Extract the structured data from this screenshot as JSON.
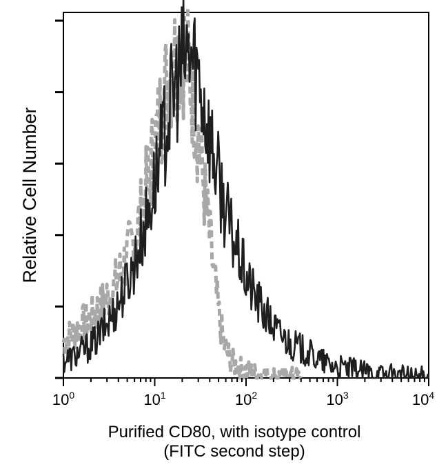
{
  "chart_data": {
    "type": "line",
    "title": "",
    "ylabel": "Relative Cell Number",
    "xlabel_lines": [
      "Purified CD80, with isotype control",
      "(FITC second step)"
    ],
    "x_scale": "log",
    "xlim": [
      1,
      10000
    ],
    "ylim": [
      0,
      100
    ],
    "x_ticks": [
      {
        "value": 1,
        "base": "10",
        "exp": "0"
      },
      {
        "value": 10,
        "base": "10",
        "exp": "1"
      },
      {
        "value": 100,
        "base": "10",
        "exp": "2"
      },
      {
        "value": 1000,
        "base": "10",
        "exp": "3"
      },
      {
        "value": 10000,
        "base": "10",
        "exp": "4"
      }
    ],
    "y_ticks": [
      0,
      20,
      40,
      60,
      80,
      100
    ],
    "grid": false,
    "legend": "none",
    "series": [
      {
        "style": "dashed",
        "color": "#a8a8a8",
        "x": [
          1.0,
          1.2,
          1.5,
          1.8,
          2.2,
          2.7,
          3.3,
          4.0,
          4.8,
          5.8,
          7.0,
          8.4,
          10,
          12,
          14,
          17,
          20,
          24,
          28,
          33,
          38,
          44,
          50,
          58,
          68,
          80,
          100,
          130,
          180,
          250,
          400
        ],
        "y": [
          10,
          12,
          14,
          16,
          18,
          21,
          24,
          28,
          33,
          38,
          45,
          55,
          65,
          76,
          84,
          90,
          93,
          86,
          74,
          58,
          44,
          30,
          18,
          9,
          5,
          3,
          2,
          1,
          0.5,
          0.3,
          0
        ]
      },
      {
        "style": "solid",
        "color": "#1e1e1e",
        "x": [
          1.0,
          1.3,
          1.7,
          2.2,
          2.8,
          3.5,
          4.5,
          5.6,
          7.0,
          8.5,
          10,
          12,
          14,
          17,
          20,
          24,
          28,
          33,
          40,
          48,
          58,
          70,
          85,
          100,
          130,
          170,
          220,
          300,
          400,
          550,
          750,
          1000,
          1500,
          2000,
          3000,
          5000,
          7000,
          10000
        ],
        "y": [
          5,
          6,
          8,
          10,
          14,
          18,
          24,
          30,
          38,
          46,
          55,
          64,
          74,
          82,
          88,
          91,
          88,
          80,
          68,
          58,
          48,
          40,
          34,
          28,
          22,
          17,
          13,
          10,
          8,
          6,
          4,
          3,
          2.2,
          1.6,
          1.0,
          0.6,
          0.4,
          0.2
        ]
      }
    ]
  }
}
